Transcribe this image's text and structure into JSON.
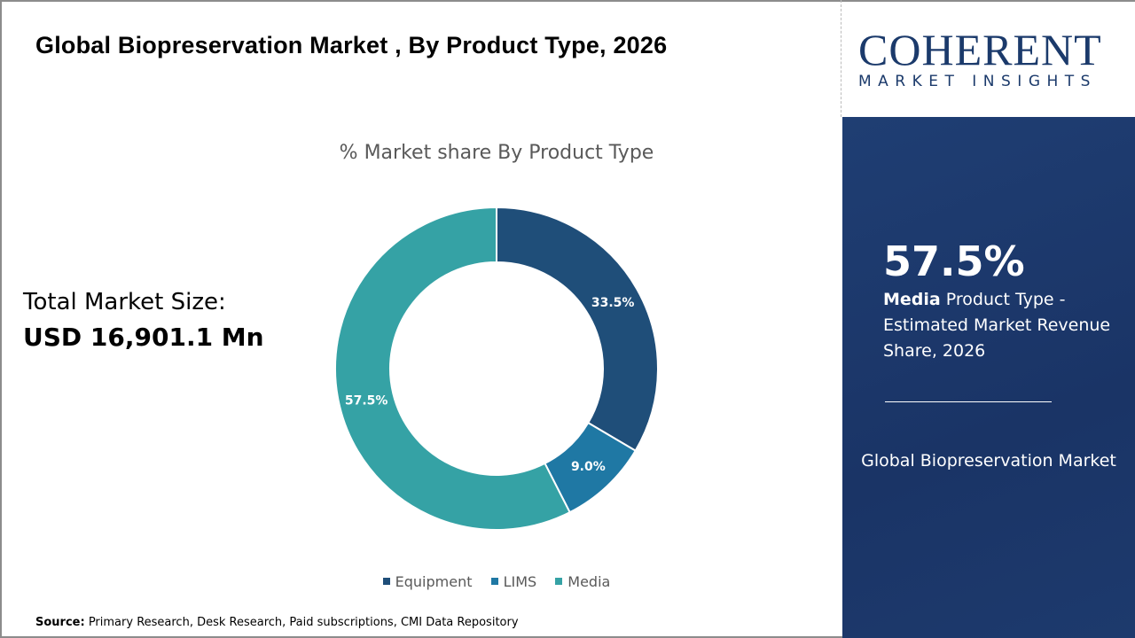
{
  "header": {
    "title": "Global Biopreservation Market , By Product Type, 2026"
  },
  "total": {
    "label": "Total Market Size:",
    "value": "USD 16,901.1 Mn"
  },
  "logo": {
    "main": "COHERENT",
    "sub": "MARKET INSIGHTS"
  },
  "panel": {
    "percent": "57.5%",
    "bold": "Media",
    "text": " Product Type - Estimated Market Revenue Share, 2026",
    "market": "Global Biopreservation Market"
  },
  "source": {
    "label": "Source:",
    "text": " Primary Research, Desk Research, Paid subscriptions, CMI Data Repository"
  },
  "chart_data": {
    "type": "pie",
    "donut": true,
    "title": "% Market share By Product Type",
    "categories": [
      "Equipment",
      "LIMS",
      "Media"
    ],
    "values": [
      33.5,
      9.0,
      57.5
    ],
    "labels": [
      "33.5%",
      "9.0%",
      "57.5%"
    ],
    "colors": [
      "#1f4e79",
      "#1f78a4",
      "#35a2a5"
    ],
    "legend": "bottom"
  }
}
